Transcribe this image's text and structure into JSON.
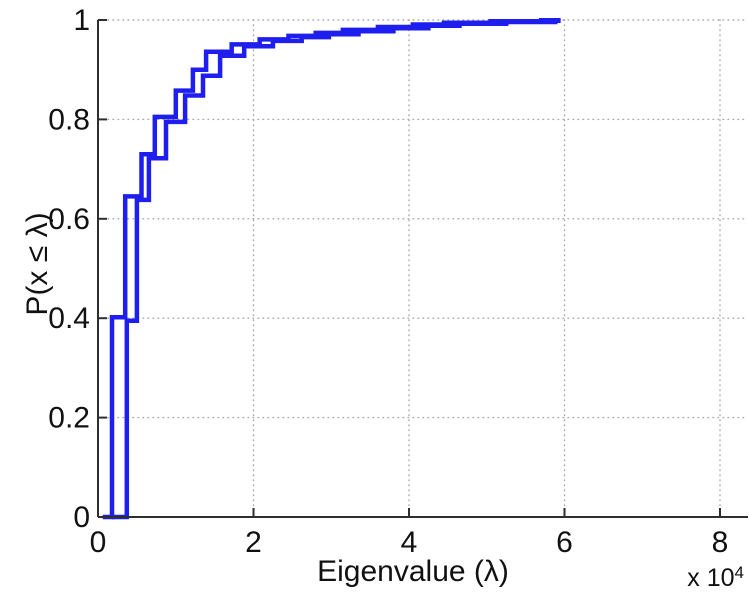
{
  "figure": {
    "background": "#ffffff",
    "xlabel": "Eigenvalue (λ)",
    "ylabel": "P(x ≤ λ)",
    "x_multiplier_base": "x 10",
    "x_multiplier_exp": "4",
    "x_tick_labels": [
      "0",
      "2",
      "4",
      "6",
      "8"
    ],
    "y_tick_labels": [
      "0",
      "0.2",
      "0.4",
      "0.6",
      "0.8",
      "1"
    ]
  },
  "chart_data": {
    "type": "line",
    "subtype": "ecdf-stairs",
    "title": "",
    "xlabel": "Eigenvalue (λ)",
    "ylabel": "P(x ≤ λ)",
    "x_unit_multiplier": 10000,
    "xlim": [
      0,
      8.36
    ],
    "ylim": [
      0,
      1
    ],
    "x_tick_values": [
      0,
      2,
      4,
      6,
      8
    ],
    "y_tick_values": [
      0,
      0.2,
      0.4,
      0.6,
      0.8,
      1
    ],
    "grid": true,
    "grid_style": "dotted",
    "grid_color": "#a8a8a8",
    "axis_color": "#2e2e2e",
    "line_color": "#1e1eee",
    "line_width": 4.5,
    "series": [
      {
        "name": "ecdf-curve-1",
        "x_start": 0.06,
        "x_end": 5.95,
        "steps": [
          [
            0.18,
            0.402
          ],
          [
            0.35,
            0.645
          ],
          [
            0.56,
            0.73
          ],
          [
            0.73,
            0.805
          ],
          [
            1.0,
            0.858
          ],
          [
            1.22,
            0.9
          ],
          [
            1.39,
            0.936
          ],
          [
            1.72,
            0.951
          ],
          [
            2.08,
            0.961
          ],
          [
            2.45,
            0.968
          ],
          [
            2.8,
            0.974
          ],
          [
            3.15,
            0.98
          ],
          [
            3.6,
            0.986
          ],
          [
            4.05,
            0.991
          ],
          [
            4.45,
            0.9945
          ],
          [
            5.05,
            0.9975
          ],
          [
            5.7,
            0.9995
          ]
        ]
      },
      {
        "name": "ecdf-curve-2",
        "x_start": 0.18,
        "x_end": 5.95,
        "steps": [
          [
            0.37,
            0.395
          ],
          [
            0.5,
            0.638
          ],
          [
            0.655,
            0.722
          ],
          [
            0.875,
            0.795
          ],
          [
            1.12,
            0.848
          ],
          [
            1.35,
            0.888
          ],
          [
            1.57,
            0.928
          ],
          [
            1.88,
            0.947
          ],
          [
            2.25,
            0.958
          ],
          [
            2.62,
            0.9655
          ],
          [
            2.97,
            0.9715
          ],
          [
            3.35,
            0.9775
          ],
          [
            3.8,
            0.9835
          ],
          [
            4.25,
            0.9885
          ],
          [
            4.65,
            0.9925
          ],
          [
            5.25,
            0.996
          ],
          [
            5.88,
            0.9985
          ]
        ]
      }
    ]
  }
}
